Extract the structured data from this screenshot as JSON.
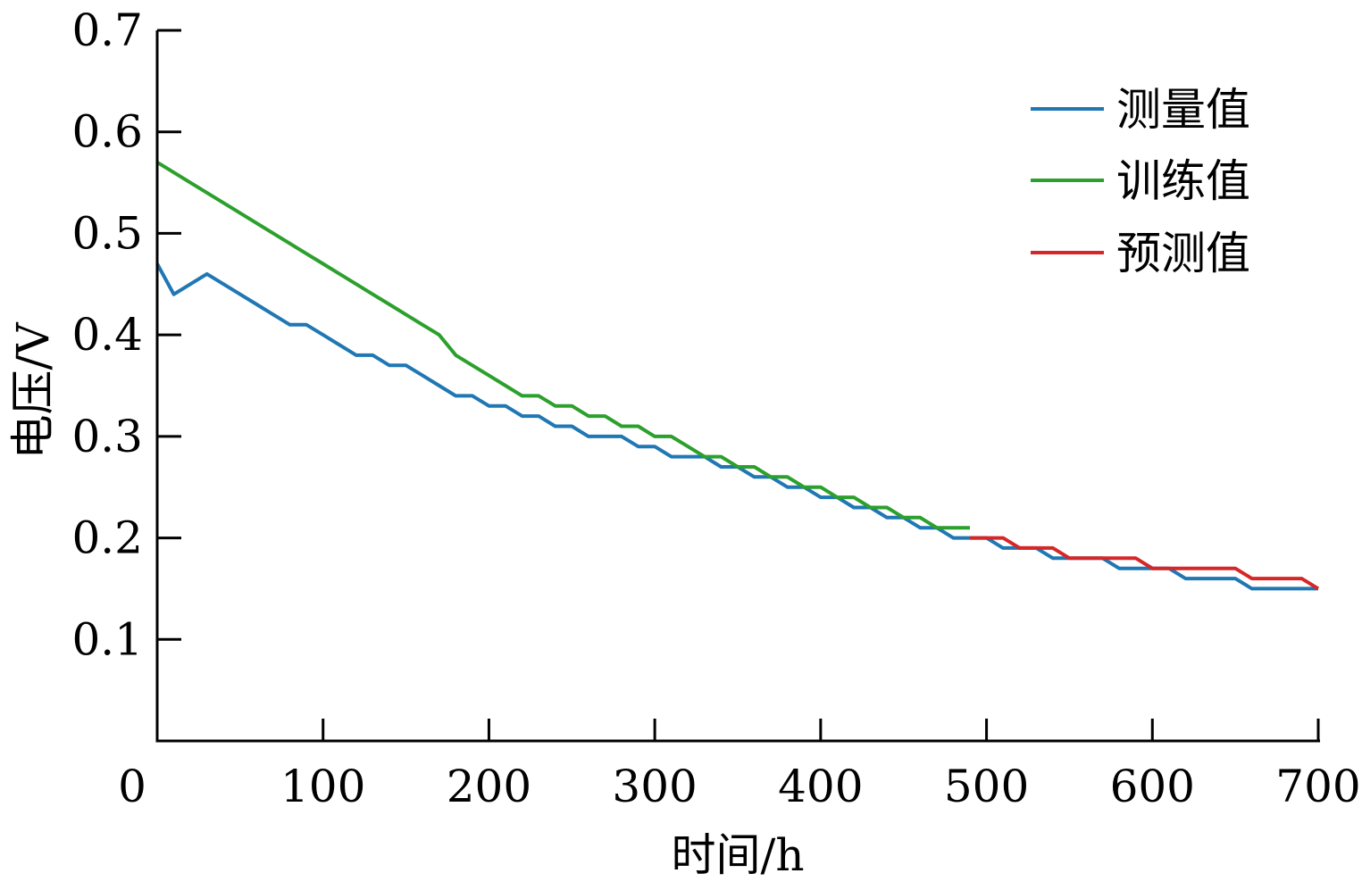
{
  "chart_data": {
    "type": "line",
    "title": "",
    "xlabel": "时间/h",
    "ylabel": "电压/V",
    "xlim": [
      0,
      700
    ],
    "ylim": [
      0,
      0.7
    ],
    "x_ticks": [
      "0",
      "100",
      "200",
      "300",
      "400",
      "500",
      "600",
      "700"
    ],
    "y_ticks": [
      "0.1",
      "0.2",
      "0.3",
      "0.4",
      "0.5",
      "0.6",
      "0.7"
    ],
    "grid": false,
    "legend_position": "top-right",
    "series": [
      {
        "name": "测量值",
        "color": "#1f77b4",
        "points": [
          [
            0,
            0.47
          ],
          [
            10,
            0.44
          ],
          [
            20,
            0.45
          ],
          [
            30,
            0.46
          ],
          [
            40,
            0.45
          ],
          [
            50,
            0.44
          ],
          [
            60,
            0.43
          ],
          [
            70,
            0.42
          ],
          [
            80,
            0.41
          ],
          [
            90,
            0.41
          ],
          [
            100,
            0.4
          ],
          [
            110,
            0.39
          ],
          [
            120,
            0.38
          ],
          [
            130,
            0.38
          ],
          [
            140,
            0.37
          ],
          [
            150,
            0.37
          ],
          [
            160,
            0.36
          ],
          [
            170,
            0.35
          ],
          [
            180,
            0.34
          ],
          [
            190,
            0.34
          ],
          [
            200,
            0.33
          ],
          [
            210,
            0.33
          ],
          [
            220,
            0.32
          ],
          [
            230,
            0.32
          ],
          [
            240,
            0.31
          ],
          [
            250,
            0.31
          ],
          [
            260,
            0.3
          ],
          [
            270,
            0.3
          ],
          [
            280,
            0.3
          ],
          [
            290,
            0.29
          ],
          [
            300,
            0.29
          ],
          [
            310,
            0.28
          ],
          [
            320,
            0.28
          ],
          [
            330,
            0.28
          ],
          [
            340,
            0.27
          ],
          [
            350,
            0.27
          ],
          [
            360,
            0.26
          ],
          [
            370,
            0.26
          ],
          [
            380,
            0.25
          ],
          [
            390,
            0.25
          ],
          [
            400,
            0.24
          ],
          [
            410,
            0.24
          ],
          [
            420,
            0.23
          ],
          [
            430,
            0.23
          ],
          [
            440,
            0.22
          ],
          [
            450,
            0.22
          ],
          [
            460,
            0.21
          ],
          [
            470,
            0.21
          ],
          [
            480,
            0.2
          ],
          [
            490,
            0.2
          ],
          [
            500,
            0.2
          ],
          [
            510,
            0.19
          ],
          [
            520,
            0.19
          ],
          [
            530,
            0.19
          ],
          [
            540,
            0.18
          ],
          [
            550,
            0.18
          ],
          [
            560,
            0.18
          ],
          [
            570,
            0.18
          ],
          [
            580,
            0.17
          ],
          [
            590,
            0.17
          ],
          [
            600,
            0.17
          ],
          [
            610,
            0.17
          ],
          [
            620,
            0.16
          ],
          [
            630,
            0.16
          ],
          [
            640,
            0.16
          ],
          [
            650,
            0.16
          ],
          [
            660,
            0.15
          ],
          [
            670,
            0.15
          ],
          [
            680,
            0.15
          ],
          [
            690,
            0.15
          ],
          [
            700,
            0.15
          ]
        ]
      },
      {
        "name": "训练值",
        "color": "#2ca02c",
        "points": [
          [
            0,
            0.57
          ],
          [
            10,
            0.56
          ],
          [
            20,
            0.55
          ],
          [
            30,
            0.54
          ],
          [
            40,
            0.53
          ],
          [
            50,
            0.52
          ],
          [
            60,
            0.51
          ],
          [
            70,
            0.5
          ],
          [
            80,
            0.49
          ],
          [
            90,
            0.48
          ],
          [
            100,
            0.47
          ],
          [
            110,
            0.46
          ],
          [
            120,
            0.45
          ],
          [
            130,
            0.44
          ],
          [
            140,
            0.43
          ],
          [
            150,
            0.42
          ],
          [
            160,
            0.41
          ],
          [
            170,
            0.4
          ],
          [
            180,
            0.38
          ],
          [
            190,
            0.37
          ],
          [
            200,
            0.36
          ],
          [
            210,
            0.35
          ],
          [
            220,
            0.34
          ],
          [
            230,
            0.34
          ],
          [
            240,
            0.33
          ],
          [
            250,
            0.33
          ],
          [
            260,
            0.32
          ],
          [
            270,
            0.32
          ],
          [
            280,
            0.31
          ],
          [
            290,
            0.31
          ],
          [
            300,
            0.3
          ],
          [
            310,
            0.3
          ],
          [
            320,
            0.29
          ],
          [
            330,
            0.28
          ],
          [
            340,
            0.28
          ],
          [
            350,
            0.27
          ],
          [
            360,
            0.27
          ],
          [
            370,
            0.26
          ],
          [
            380,
            0.26
          ],
          [
            390,
            0.25
          ],
          [
            400,
            0.25
          ],
          [
            410,
            0.24
          ],
          [
            420,
            0.24
          ],
          [
            430,
            0.23
          ],
          [
            440,
            0.23
          ],
          [
            450,
            0.22
          ],
          [
            460,
            0.22
          ],
          [
            470,
            0.21
          ],
          [
            480,
            0.21
          ],
          [
            490,
            0.21
          ]
        ]
      },
      {
        "name": "预测值",
        "color": "#d62728",
        "points": [
          [
            490,
            0.2
          ],
          [
            500,
            0.2
          ],
          [
            510,
            0.2
          ],
          [
            520,
            0.19
          ],
          [
            530,
            0.19
          ],
          [
            540,
            0.19
          ],
          [
            550,
            0.18
          ],
          [
            560,
            0.18
          ],
          [
            570,
            0.18
          ],
          [
            580,
            0.18
          ],
          [
            590,
            0.18
          ],
          [
            600,
            0.17
          ],
          [
            610,
            0.17
          ],
          [
            620,
            0.17
          ],
          [
            630,
            0.17
          ],
          [
            640,
            0.17
          ],
          [
            650,
            0.17
          ],
          [
            660,
            0.16
          ],
          [
            670,
            0.16
          ],
          [
            680,
            0.16
          ],
          [
            690,
            0.16
          ],
          [
            700,
            0.15
          ]
        ]
      }
    ]
  }
}
